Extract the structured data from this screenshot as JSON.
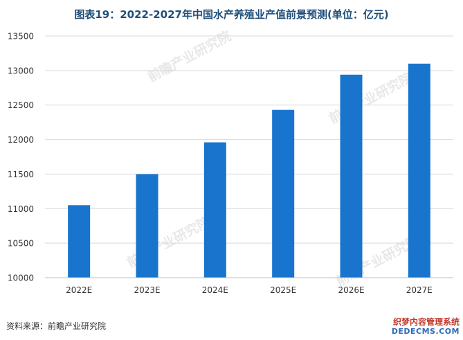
{
  "header": {
    "title": "图表19：2022-2027年中国水产养殖业产值前景预测(单位：亿元)"
  },
  "footer": {
    "source": "资料来源：前瞻产业研究院"
  },
  "watermarks": {
    "brand": "前瞻产业研究院",
    "corner_line1": "织梦内容管理系统",
    "corner_line2": "DEDECMS.COM"
  },
  "colors": {
    "bar": "#1874cd",
    "title": "#1f4e79",
    "gridline": "#d9d9d9",
    "axis": "#bfbfbf"
  },
  "chart_data": {
    "type": "bar",
    "title": "图表19：2022-2027年中国水产养殖业产值前景预测(单位：亿元)",
    "xlabel": "",
    "ylabel": "",
    "categories": [
      "2022E",
      "2023E",
      "2024E",
      "2025E",
      "2026E",
      "2027E"
    ],
    "series": [
      {
        "values": [
          11050,
          11500,
          11960,
          12430,
          12940,
          13100
        ]
      }
    ],
    "ylim": [
      10000,
      13500
    ],
    "yticks": [
      10000,
      10500,
      11000,
      11500,
      12000,
      12500,
      13000,
      13500
    ],
    "grid": true,
    "legend": "none"
  }
}
